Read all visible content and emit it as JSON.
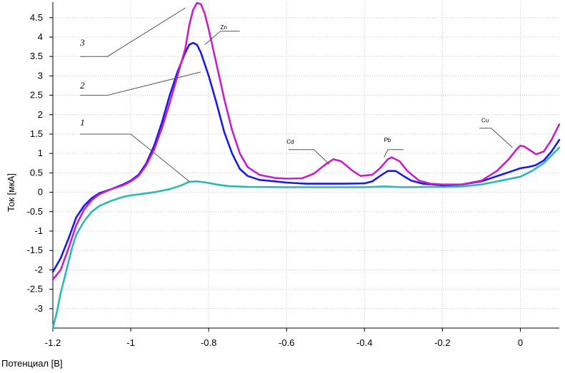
{
  "chart_data": {
    "type": "line",
    "xlabel": "Потенциал [В]",
    "ylabel": "Ток [мкА]",
    "xlim": [
      -1.2,
      0.1
    ],
    "ylim": [
      -3.5,
      4.9
    ],
    "x_ticks": [
      -1.2,
      -1,
      -0.8,
      -0.6,
      -0.4,
      -0.2,
      0
    ],
    "x_tick_labels": [
      "-1.2",
      "-1",
      "-0.8",
      "-0.6",
      "-0.4",
      "-0.2",
      "0"
    ],
    "y_ticks": [
      -3,
      -2.5,
      -2,
      -1.5,
      -1,
      -0.5,
      0,
      0.5,
      1,
      1.5,
      2,
      2.5,
      3,
      3.5,
      4,
      4.5
    ],
    "y_tick_labels": [
      "-3",
      "-2.5",
      "-2",
      "-1.5",
      "-1",
      "-0.5",
      "0",
      "0.5",
      "1",
      "1.5",
      "2",
      "2.5",
      "3",
      "3.5",
      "4",
      "4.5"
    ],
    "grid": true,
    "series": [
      {
        "label": "1",
        "color": "#2ab8b8",
        "points": [
          [
            -1.2,
            -3.5
          ],
          [
            -1.19,
            -3.1
          ],
          [
            -1.18,
            -2.6
          ],
          [
            -1.17,
            -2.2
          ],
          [
            -1.16,
            -1.8
          ],
          [
            -1.15,
            -1.4
          ],
          [
            -1.14,
            -1.1
          ],
          [
            -1.12,
            -0.75
          ],
          [
            -1.1,
            -0.5
          ],
          [
            -1.08,
            -0.35
          ],
          [
            -1.05,
            -0.22
          ],
          [
            -1.02,
            -0.12
          ],
          [
            -1,
            -0.08
          ],
          [
            -0.97,
            -0.04
          ],
          [
            -0.94,
            0.0
          ],
          [
            -0.9,
            0.08
          ],
          [
            -0.87,
            0.18
          ],
          [
            -0.85,
            0.27
          ],
          [
            -0.83,
            0.28
          ],
          [
            -0.8,
            0.24
          ],
          [
            -0.78,
            0.2
          ],
          [
            -0.75,
            0.16
          ],
          [
            -0.7,
            0.14
          ],
          [
            -0.6,
            0.13
          ],
          [
            -0.5,
            0.13
          ],
          [
            -0.4,
            0.13
          ],
          [
            -0.35,
            0.15
          ],
          [
            -0.3,
            0.13
          ],
          [
            -0.2,
            0.14
          ],
          [
            -0.15,
            0.15
          ],
          [
            -0.1,
            0.2
          ],
          [
            -0.05,
            0.3
          ],
          [
            0,
            0.4
          ],
          [
            0.03,
            0.55
          ],
          [
            0.06,
            0.75
          ],
          [
            0.08,
            0.95
          ],
          [
            0.1,
            1.15
          ]
        ]
      },
      {
        "label": "2",
        "color": "#1a1ae6",
        "points": [
          [
            -1.2,
            -2.05
          ],
          [
            -1.18,
            -1.7
          ],
          [
            -1.16,
            -1.2
          ],
          [
            -1.14,
            -0.65
          ],
          [
            -1.12,
            -0.35
          ],
          [
            -1.1,
            -0.15
          ],
          [
            -1.08,
            -0.02
          ],
          [
            -1.05,
            0.08
          ],
          [
            -1.02,
            0.2
          ],
          [
            -1,
            0.3
          ],
          [
            -0.98,
            0.45
          ],
          [
            -0.96,
            0.75
          ],
          [
            -0.94,
            1.2
          ],
          [
            -0.92,
            1.8
          ],
          [
            -0.9,
            2.5
          ],
          [
            -0.88,
            3.1
          ],
          [
            -0.86,
            3.6
          ],
          [
            -0.85,
            3.8
          ],
          [
            -0.84,
            3.85
          ],
          [
            -0.83,
            3.8
          ],
          [
            -0.82,
            3.6
          ],
          [
            -0.8,
            3.0
          ],
          [
            -0.78,
            2.3
          ],
          [
            -0.76,
            1.55
          ],
          [
            -0.74,
            1.0
          ],
          [
            -0.72,
            0.6
          ],
          [
            -0.7,
            0.42
          ],
          [
            -0.67,
            0.32
          ],
          [
            -0.63,
            0.28
          ],
          [
            -0.6,
            0.25
          ],
          [
            -0.55,
            0.22
          ],
          [
            -0.5,
            0.22
          ],
          [
            -0.45,
            0.22
          ],
          [
            -0.4,
            0.23
          ],
          [
            -0.38,
            0.28
          ],
          [
            -0.36,
            0.42
          ],
          [
            -0.34,
            0.55
          ],
          [
            -0.32,
            0.55
          ],
          [
            -0.3,
            0.42
          ],
          [
            -0.28,
            0.3
          ],
          [
            -0.25,
            0.22
          ],
          [
            -0.2,
            0.18
          ],
          [
            -0.15,
            0.2
          ],
          [
            -0.1,
            0.28
          ],
          [
            -0.05,
            0.45
          ],
          [
            -0.02,
            0.55
          ],
          [
            0,
            0.62
          ],
          [
            0.02,
            0.65
          ],
          [
            0.04,
            0.7
          ],
          [
            0.06,
            0.82
          ],
          [
            0.08,
            1.05
          ],
          [
            0.1,
            1.35
          ]
        ]
      },
      {
        "label": "3",
        "color": "#c81ec8",
        "points": [
          [
            -1.2,
            -2.25
          ],
          [
            -1.18,
            -2.0
          ],
          [
            -1.16,
            -1.45
          ],
          [
            -1.14,
            -0.85
          ],
          [
            -1.12,
            -0.45
          ],
          [
            -1.1,
            -0.2
          ],
          [
            -1.08,
            -0.05
          ],
          [
            -1.05,
            0.08
          ],
          [
            -1.02,
            0.18
          ],
          [
            -1,
            0.28
          ],
          [
            -0.98,
            0.42
          ],
          [
            -0.96,
            0.7
          ],
          [
            -0.94,
            1.1
          ],
          [
            -0.92,
            1.65
          ],
          [
            -0.9,
            2.3
          ],
          [
            -0.88,
            3.0
          ],
          [
            -0.86,
            3.7
          ],
          [
            -0.85,
            4.3
          ],
          [
            -0.84,
            4.7
          ],
          [
            -0.83,
            4.88
          ],
          [
            -0.82,
            4.85
          ],
          [
            -0.81,
            4.6
          ],
          [
            -0.8,
            4.2
          ],
          [
            -0.78,
            3.3
          ],
          [
            -0.76,
            2.4
          ],
          [
            -0.74,
            1.6
          ],
          [
            -0.72,
            1.0
          ],
          [
            -0.7,
            0.65
          ],
          [
            -0.67,
            0.45
          ],
          [
            -0.63,
            0.37
          ],
          [
            -0.6,
            0.35
          ],
          [
            -0.56,
            0.36
          ],
          [
            -0.53,
            0.48
          ],
          [
            -0.5,
            0.72
          ],
          [
            -0.48,
            0.85
          ],
          [
            -0.46,
            0.8
          ],
          [
            -0.43,
            0.55
          ],
          [
            -0.41,
            0.42
          ],
          [
            -0.38,
            0.45
          ],
          [
            -0.36,
            0.62
          ],
          [
            -0.34,
            0.85
          ],
          [
            -0.33,
            0.9
          ],
          [
            -0.31,
            0.8
          ],
          [
            -0.29,
            0.55
          ],
          [
            -0.26,
            0.3
          ],
          [
            -0.23,
            0.22
          ],
          [
            -0.2,
            0.2
          ],
          [
            -0.15,
            0.2
          ],
          [
            -0.1,
            0.3
          ],
          [
            -0.06,
            0.55
          ],
          [
            -0.03,
            0.85
          ],
          [
            -0.01,
            1.1
          ],
          [
            0,
            1.2
          ],
          [
            0.01,
            1.18
          ],
          [
            0.03,
            1.05
          ],
          [
            0.04,
            0.98
          ],
          [
            0.06,
            1.05
          ],
          [
            0.08,
            1.35
          ],
          [
            0.1,
            1.75
          ]
        ]
      }
    ],
    "annotations": [
      {
        "text": "Zn",
        "label_at": [
          -0.77,
          4.2
        ],
        "line": [
          [
            -0.72,
            4.15
          ],
          [
            -0.77,
            4.15
          ],
          [
            -0.81,
            3.8
          ]
        ]
      },
      {
        "text": "Cd",
        "label_at": [
          -0.6,
          1.25
        ],
        "line": [
          [
            -0.595,
            1.1
          ],
          [
            -0.53,
            1.1
          ],
          [
            -0.49,
            0.72
          ]
        ]
      },
      {
        "text": "Pb",
        "label_at": [
          -0.35,
          1.3
        ],
        "line": [
          [
            -0.3,
            1.1
          ],
          [
            -0.34,
            1.1
          ],
          [
            -0.35,
            0.9
          ]
        ]
      },
      {
        "text": "Cu",
        "label_at": [
          -0.1,
          1.8
        ],
        "line": [
          [
            -0.105,
            1.65
          ],
          [
            -0.075,
            1.65
          ],
          [
            -0.02,
            1.15
          ]
        ]
      },
      {
        "text": "3",
        "label_at": [
          -1.13,
          3.78
        ],
        "line": [
          [
            -1.13,
            3.5
          ],
          [
            -1.06,
            3.5
          ],
          [
            -0.86,
            4.75
          ]
        ]
      },
      {
        "text": "2",
        "label_at": [
          -1.13,
          2.68
        ],
        "line": [
          [
            -1.13,
            2.5
          ],
          [
            -1.06,
            2.5
          ],
          [
            -0.82,
            3.1
          ]
        ]
      },
      {
        "text": "1",
        "label_at": [
          -1.13,
          1.72
        ],
        "line": [
          [
            -1.13,
            1.5
          ],
          [
            -1.0,
            1.5
          ],
          [
            -0.85,
            0.28
          ]
        ]
      }
    ]
  }
}
